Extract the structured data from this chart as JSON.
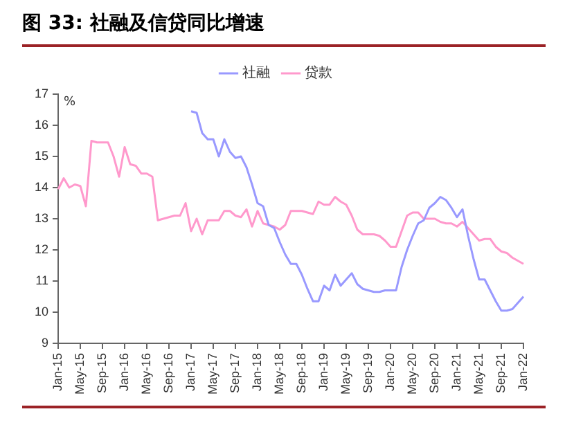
{
  "chart_data": {
    "type": "line",
    "title": "图 33: 社融及信贷同比增速",
    "ylabel": "%",
    "categories": [
      "Jan-15",
      null,
      null,
      null,
      "May-15",
      null,
      null,
      null,
      "Sep-15",
      null,
      null,
      null,
      "Jan-16",
      null,
      null,
      null,
      "May-16",
      null,
      null,
      null,
      "Sep-16",
      null,
      null,
      null,
      "Jan-17",
      null,
      null,
      null,
      "May-17",
      null,
      null,
      null,
      "Sep-17",
      null,
      null,
      null,
      "Jan-18",
      null,
      null,
      null,
      "May-18",
      null,
      null,
      null,
      "Sep-18",
      null,
      null,
      null,
      "Jan-19",
      null,
      null,
      null,
      "May-19",
      null,
      null,
      null,
      "Sep-19",
      null,
      null,
      null,
      "Jan-20",
      null,
      null,
      null,
      "May-20",
      null,
      null,
      null,
      "Sep-20",
      null,
      null,
      null,
      "Jan-21",
      null,
      null,
      null,
      "May-21",
      null,
      null,
      null,
      "Sep-21",
      null,
      null,
      null,
      "Jan-22"
    ],
    "series": [
      {
        "name": "社融",
        "color": "#9999ff",
        "values": [
          null,
          null,
          null,
          null,
          null,
          null,
          null,
          null,
          null,
          null,
          null,
          null,
          null,
          null,
          null,
          null,
          null,
          null,
          null,
          null,
          null,
          null,
          null,
          null,
          16.45,
          16.4,
          15.75,
          15.55,
          15.55,
          15.0,
          15.55,
          15.15,
          14.95,
          15.0,
          14.65,
          14.1,
          13.5,
          13.4,
          12.8,
          12.7,
          12.25,
          11.85,
          11.55,
          11.55,
          11.2,
          10.75,
          10.35,
          10.35,
          10.85,
          10.7,
          11.2,
          10.85,
          11.05,
          11.25,
          10.9,
          10.75,
          10.7,
          10.65,
          10.65,
          10.7,
          10.7,
          10.7,
          11.45,
          12.0,
          12.45,
          12.85,
          12.95,
          13.35,
          13.5,
          13.7,
          13.6,
          13.35,
          13.05,
          13.3,
          12.45,
          11.7,
          11.05,
          11.05,
          10.7,
          10.35,
          10.05,
          10.05,
          10.1,
          10.3,
          10.5
        ]
      },
      {
        "name": "贷款",
        "color": "#ff99cc",
        "values": [
          13.95,
          14.3,
          14.0,
          14.1,
          14.05,
          13.4,
          15.5,
          15.45,
          15.45,
          15.45,
          15.0,
          14.35,
          15.3,
          14.75,
          14.7,
          14.45,
          14.45,
          14.35,
          12.95,
          13.0,
          13.05,
          13.1,
          13.1,
          13.5,
          12.6,
          13.0,
          12.5,
          12.95,
          12.95,
          12.95,
          13.25,
          13.25,
          13.1,
          13.05,
          13.3,
          12.75,
          13.25,
          12.85,
          12.8,
          12.75,
          12.65,
          12.8,
          13.25,
          13.25,
          13.25,
          13.2,
          13.15,
          13.55,
          13.45,
          13.45,
          13.7,
          13.55,
          13.45,
          13.1,
          12.65,
          12.5,
          12.5,
          12.5,
          12.45,
          12.3,
          12.1,
          12.1,
          12.6,
          13.1,
          13.2,
          13.2,
          13.0,
          13.0,
          13.0,
          12.9,
          12.85,
          12.85,
          12.75,
          12.9,
          12.7,
          12.5,
          12.3,
          12.35,
          12.35,
          12.1,
          11.95,
          11.9,
          11.75,
          11.65,
          11.55
        ]
      }
    ],
    "ylim": [
      9,
      17
    ],
    "yticks": [
      9,
      10,
      11,
      12,
      13,
      14,
      15,
      16,
      17
    ],
    "grid": false,
    "legend": "top",
    "marker": "none",
    "line_style": "solid"
  }
}
